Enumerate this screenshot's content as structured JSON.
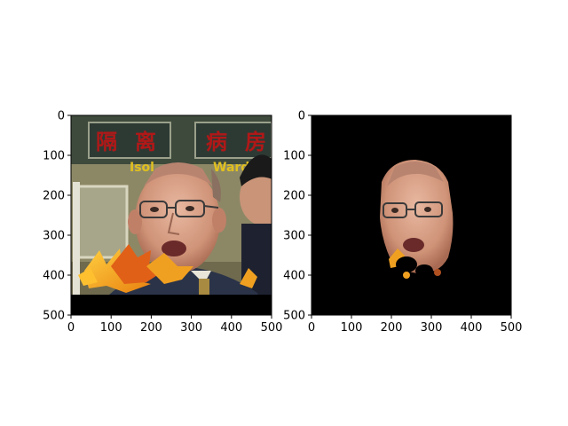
{
  "panels": [
    {
      "id": "left",
      "image": "photo of bald man with glasses, autumn leaves overlay, sign text in background",
      "sign_text": [
        "隔",
        "离",
        "病",
        "房",
        "Isol",
        "Ward"
      ],
      "x_ticks": [
        0,
        100,
        200,
        300,
        400,
        500
      ],
      "y_ticks": [
        0,
        100,
        200,
        300,
        400,
        500
      ],
      "x_range": [
        0,
        500
      ],
      "y_range": [
        0,
        500
      ]
    },
    {
      "id": "right",
      "image": "segmented face mask on black background",
      "x_ticks": [
        0,
        100,
        200,
        300,
        400,
        500
      ],
      "y_ticks": [
        0,
        100,
        200,
        300,
        400,
        500
      ],
      "x_range": [
        0,
        500
      ],
      "y_range": [
        0,
        500
      ]
    }
  ],
  "colors": {
    "background": "#ffffff",
    "axis": "#000000",
    "mask_bg": "#000000",
    "sign_red": "#b01818",
    "leaf_orange": "#f0a020",
    "leaf_red": "#e06018",
    "skin": "#d8a088",
    "suit": "#2a3348"
  }
}
